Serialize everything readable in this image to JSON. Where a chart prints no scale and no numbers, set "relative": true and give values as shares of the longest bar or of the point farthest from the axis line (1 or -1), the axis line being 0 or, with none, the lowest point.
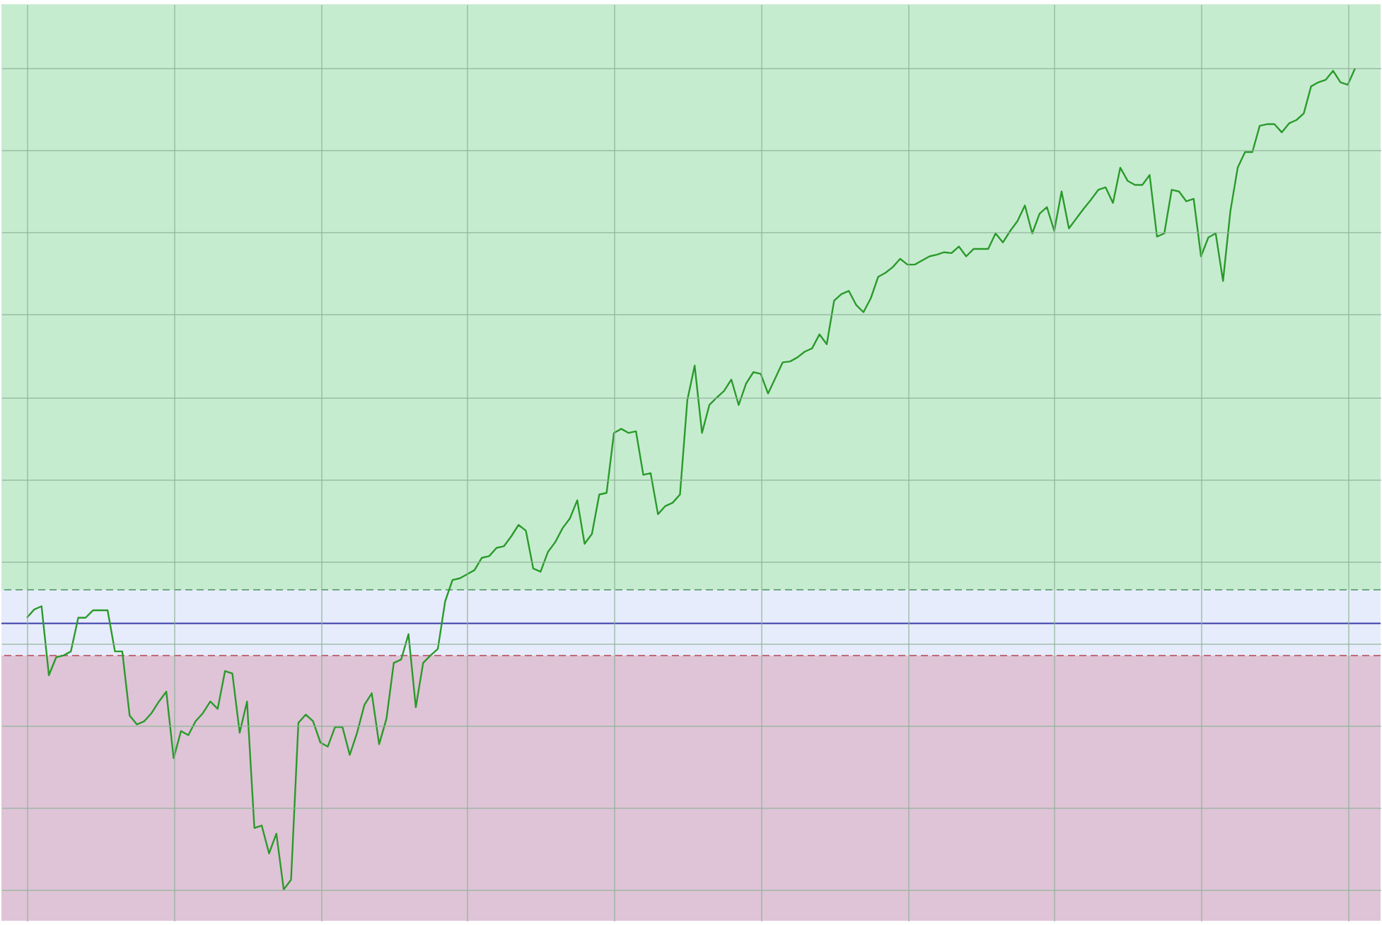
{
  "chart_data": {
    "type": "line",
    "relative": true,
    "grid": true,
    "categories": [
      null,
      null,
      null,
      null,
      null,
      null,
      null,
      null,
      null,
      null,
      null,
      null,
      null,
      null,
      null,
      null,
      null,
      null,
      null,
      null,
      null,
      null,
      null,
      null,
      null,
      null,
      null,
      null,
      null,
      null,
      null,
      null,
      null,
      null,
      null,
      null,
      null,
      null,
      null,
      null,
      null,
      null,
      null,
      null,
      null,
      null,
      null,
      null,
      null,
      null,
      null,
      null,
      null,
      null,
      null,
      null,
      null,
      null,
      null,
      null,
      null,
      null,
      null,
      null,
      null,
      null,
      null,
      null,
      null,
      null,
      null,
      null,
      null,
      null,
      null,
      null,
      null,
      null,
      null,
      null,
      null,
      null,
      null,
      null,
      null,
      null,
      null,
      null,
      null,
      null,
      null,
      null,
      null,
      null,
      null,
      null,
      null,
      null,
      null,
      null,
      null,
      null,
      null,
      null,
      null,
      null,
      null,
      null,
      null,
      null,
      null,
      null,
      null,
      null,
      null,
      null,
      null,
      null,
      null,
      null,
      null,
      null,
      null,
      null,
      null,
      null,
      null,
      null,
      null,
      null,
      null,
      null,
      null,
      null,
      null,
      null,
      null,
      null,
      null,
      null,
      null,
      null,
      null,
      null,
      null,
      null,
      null,
      null,
      null,
      null,
      null,
      null,
      null,
      null,
      null,
      null,
      null,
      null,
      null,
      null,
      null,
      null,
      null,
      null,
      null,
      null,
      null,
      null,
      null,
      null,
      null,
      null,
      null,
      null,
      null,
      null,
      null,
      null,
      null,
      null,
      null,
      null
    ],
    "series": [
      {
        "color": "#2a9a2a",
        "values": [
          0.331,
          0.341,
          0.345,
          0.261,
          0.283,
          0.285,
          0.29,
          0.331,
          0.331,
          0.34,
          0.34,
          0.34,
          0.29,
          0.29,
          0.212,
          0.201,
          0.205,
          0.215,
          0.229,
          0.241,
          0.16,
          0.193,
          0.188,
          0.205,
          0.215,
          0.229,
          0.22,
          0.266,
          0.263,
          0.191,
          0.229,
          0.075,
          0.078,
          0.044,
          0.068,
          0,
          0.012,
          0.203,
          0.213,
          0.205,
          0.179,
          0.174,
          0.198,
          0.198,
          0.164,
          0.191,
          0.225,
          0.239,
          0.177,
          0.208,
          0.276,
          0.28,
          0.311,
          0.222,
          0.276,
          0.285,
          0.293,
          0.351,
          0.377,
          0.379,
          0.384,
          0.389,
          0.404,
          0.406,
          0.416,
          0.418,
          0.43,
          0.444,
          0.437,
          0.391,
          0.387,
          0.411,
          0.423,
          0.44,
          0.452,
          0.474,
          0.421,
          0.433,
          0.481,
          0.483,
          0.556,
          0.561,
          0.556,
          0.558,
          0.505,
          0.507,
          0.457,
          0.467,
          0.471,
          0.481,
          0.596,
          0.638,
          0.556,
          0.59,
          0.599,
          0.607,
          0.621,
          0.59,
          0.616,
          0.63,
          0.628,
          0.604,
          0.623,
          0.642,
          0.643,
          0.648,
          0.655,
          0.659,
          0.676,
          0.664,
          0.717,
          0.725,
          0.729,
          0.712,
          0.703,
          0.72,
          0.746,
          0.751,
          0.758,
          0.768,
          0.761,
          0.761,
          0.766,
          0.771,
          0.773,
          0.776,
          0.775,
          0.783,
          0.771,
          0.78,
          0.78,
          0.78,
          0.799,
          0.788,
          0.802,
          0.814,
          0.833,
          0.799,
          0.823,
          0.831,
          0.802,
          0.85,
          0.805,
          0.817,
          0.829,
          0.84,
          0.852,
          0.855,
          0.836,
          0.879,
          0.863,
          0.858,
          0.858,
          0.87,
          0.795,
          0.799,
          0.852,
          0.85,
          0.838,
          0.841,
          0.771,
          0.794,
          0.799,
          0.741,
          0.826,
          0.879,
          0.898,
          0.898,
          0.93,
          0.932,
          0.932,
          0.922,
          0.933,
          0.937,
          0.945,
          0.978,
          0.983,
          0.986,
          0.997,
          0.983,
          0.98,
          1
        ]
      }
    ],
    "bands": [
      {
        "axis": "y",
        "from": 0.365,
        "to": 1.078,
        "color": "#c6ecd0"
      },
      {
        "axis": "y",
        "from": 0.285,
        "to": 0.365,
        "color": "#e6ecfb"
      },
      {
        "axis": "y",
        "from": -0.038,
        "to": 0.285,
        "color": "#dec4d6"
      }
    ],
    "ref_lines": [
      {
        "axis": "y",
        "value": 0.365,
        "color": "#6aa882",
        "line_style": "dashed"
      },
      {
        "axis": "y",
        "value": 0.285,
        "color": "#c06a78",
        "line_style": "dashed"
      },
      {
        "axis": "y",
        "value": 0.324,
        "color": "#3a3aa8",
        "line_style": "solid"
      }
    ]
  }
}
